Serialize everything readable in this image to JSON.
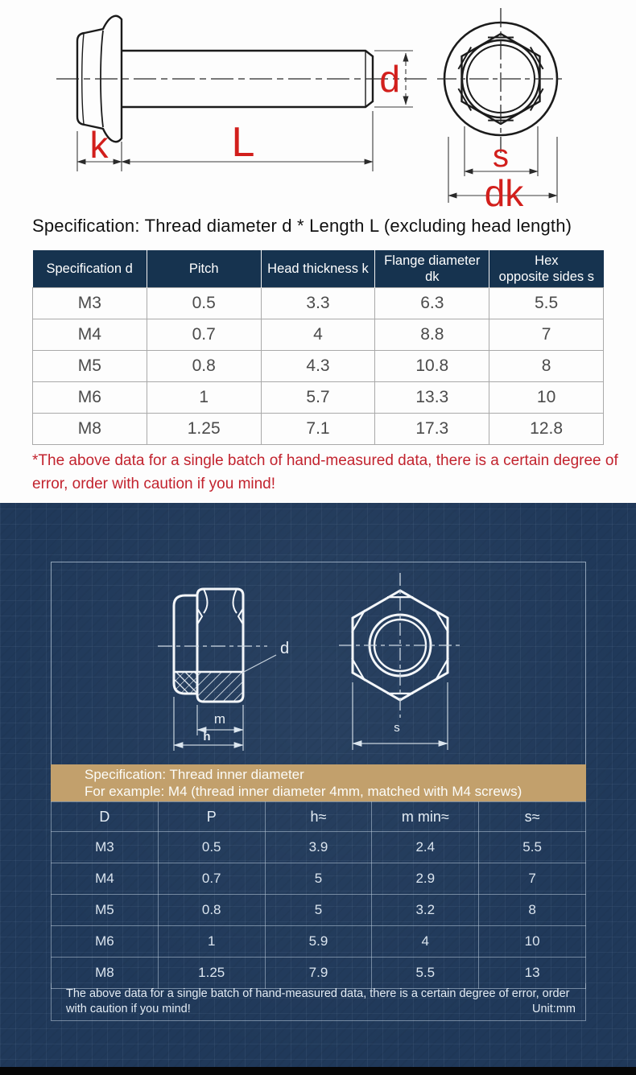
{
  "colors": {
    "accent_red": "#d21f1c",
    "table_header_navy": "#16334f",
    "banner_tan": "#c2a06c",
    "blueprint_navy": "#20395a"
  },
  "bolt_section": {
    "diagram_labels": {
      "d": "d",
      "k": "k",
      "L": "L",
      "s": "s",
      "dk": "dk"
    },
    "title": "Specification: Thread diameter d * Length L (excluding head length)",
    "table": {
      "headers": [
        "Specification d",
        "Pitch",
        "Head thickness k",
        "Flange diameter\ndk",
        "Hex\nopposite sides s"
      ],
      "rows": [
        [
          "M3",
          "0.5",
          "3.3",
          "6.3",
          "5.5"
        ],
        [
          "M4",
          "0.7",
          "4",
          "8.8",
          "7"
        ],
        [
          "M5",
          "0.8",
          "4.3",
          "10.8",
          "8"
        ],
        [
          "M6",
          "1",
          "5.7",
          "13.3",
          "10"
        ],
        [
          "M8",
          "1.25",
          "7.1",
          "17.3",
          "12.8"
        ]
      ]
    },
    "note": "*The above data for a single batch of hand-measured data, there is a certain degree of error, order with caution if you mind!"
  },
  "nut_section": {
    "diagram_labels": {
      "d": "d",
      "m": "m",
      "h": "h",
      "s": "s"
    },
    "banner_line1": "Specification: Thread inner diameter",
    "banner_line2": "For example: M4 (thread inner diameter 4mm, matched with M4 screws)",
    "table": {
      "headers": [
        "D",
        "P",
        "h≈",
        "m min≈",
        "s≈"
      ],
      "rows": [
        [
          "M3",
          "0.5",
          "3.9",
          "2.4",
          "5.5"
        ],
        [
          "M4",
          "0.7",
          "5",
          "2.9",
          "7"
        ],
        [
          "M5",
          "0.8",
          "5",
          "3.2",
          "8"
        ],
        [
          "M6",
          "1",
          "5.9",
          "4",
          "10"
        ],
        [
          "M8",
          "1.25",
          "7.9",
          "5.5",
          "13"
        ]
      ]
    },
    "footer_note": "The above data for a single batch of hand-measured data, there is a certain degree of error, order with caution if you mind!",
    "unit": "Unit:mm"
  }
}
